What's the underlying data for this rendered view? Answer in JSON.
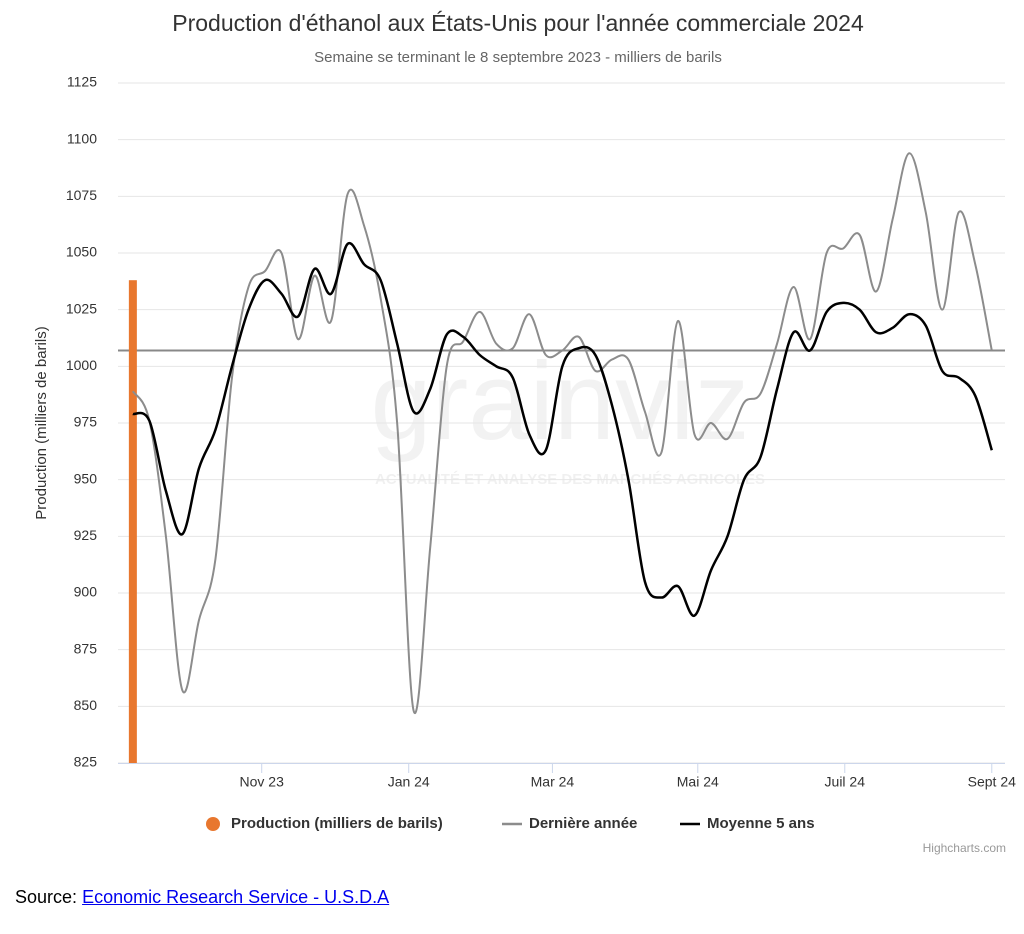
{
  "chart_data": {
    "type": "line",
    "title": "Production d'éthanol aux États-Unis pour l'année commerciale 2024",
    "subtitle": "Semaine se terminant le 8 septembre 2023 - milliers de barils",
    "y_label": "Production (milliers de barils)",
    "watermark": "grainviz",
    "watermark_tagline": "ACTUALITÉ ET ANALYSE DES MARCHÉS AGRICOLES",
    "credits": "Highcharts.com",
    "x": [
      0,
      1,
      2,
      3,
      4,
      5,
      6,
      7,
      8,
      9,
      10,
      11,
      12,
      13,
      14,
      15,
      16,
      17,
      18,
      19,
      20,
      21,
      22,
      23,
      24,
      25,
      26,
      27,
      28,
      29,
      30,
      31,
      32,
      33,
      34,
      35,
      36,
      37,
      38,
      39,
      40,
      41,
      42,
      43,
      44,
      45,
      46,
      47,
      48,
      49,
      50,
      51,
      52
    ],
    "xlim": [
      -0.9,
      52.8
    ],
    "xticks": [
      {
        "value": 7.8,
        "label": "Nov 23"
      },
      {
        "value": 16.7,
        "label": "Jan 24"
      },
      {
        "value": 25.4,
        "label": "Mar 24"
      },
      {
        "value": 34.2,
        "label": "Mai 24"
      },
      {
        "value": 43.1,
        "label": "Juil 24"
      },
      {
        "value": 52,
        "label": "Sept 24"
      }
    ],
    "ylim": [
      825,
      1125
    ],
    "yticks": [
      825,
      850,
      875,
      900,
      925,
      950,
      975,
      1000,
      1025,
      1050,
      1075,
      1100,
      1125
    ],
    "grid": true,
    "plot_line": 1007,
    "series": [
      {
        "name": "Production (milliers de barils)",
        "type": "column",
        "color": "#e8772e",
        "values": [
          1038,
          null,
          null,
          null,
          null,
          null,
          null,
          null,
          null,
          null,
          null,
          null,
          null,
          null,
          null,
          null,
          null,
          null,
          null,
          null,
          null,
          null,
          null,
          null,
          null,
          null,
          null,
          null,
          null,
          null,
          null,
          null,
          null,
          null,
          null,
          null,
          null,
          null,
          null,
          null,
          null,
          null,
          null,
          null,
          null,
          null,
          null,
          null,
          null,
          null,
          null,
          null,
          null
        ]
      },
      {
        "name": "Dernière année",
        "type": "line",
        "color": "#8c8c8c",
        "values": [
          989,
          976,
          925,
          857,
          888,
          915,
          995,
          1035,
          1042,
          1050,
          1012,
          1040,
          1020,
          1076,
          1062,
          1030,
          975,
          848,
          920,
          1000,
          1011,
          1024,
          1010,
          1008,
          1023,
          1005,
          1007,
          1013,
          998,
          1003,
          1003,
          980,
          962,
          1020,
          970,
          975,
          968,
          984,
          988,
          1010,
          1035,
          1012,
          1050,
          1052,
          1058,
          1033,
          1065,
          1094,
          1068,
          1025,
          1068,
          1045,
          1007
        ]
      },
      {
        "name": "Moyenne 5 ans",
        "type": "line",
        "color": "#000000",
        "values": [
          979,
          976,
          945,
          926,
          955,
          972,
          1000,
          1025,
          1038,
          1032,
          1022,
          1043,
          1032,
          1054,
          1045,
          1038,
          1010,
          980,
          990,
          1014,
          1013,
          1005,
          1000,
          995,
          970,
          963,
          1000,
          1008,
          1005,
          983,
          950,
          905,
          898,
          903,
          890,
          910,
          925,
          950,
          960,
          990,
          1015,
          1007,
          1024,
          1028,
          1025,
          1015,
          1017,
          1023,
          1018,
          998,
          995,
          987,
          963
        ]
      }
    ]
  },
  "source": {
    "label": "Source:",
    "link": "Economic Research Service - U.S.D.A"
  }
}
